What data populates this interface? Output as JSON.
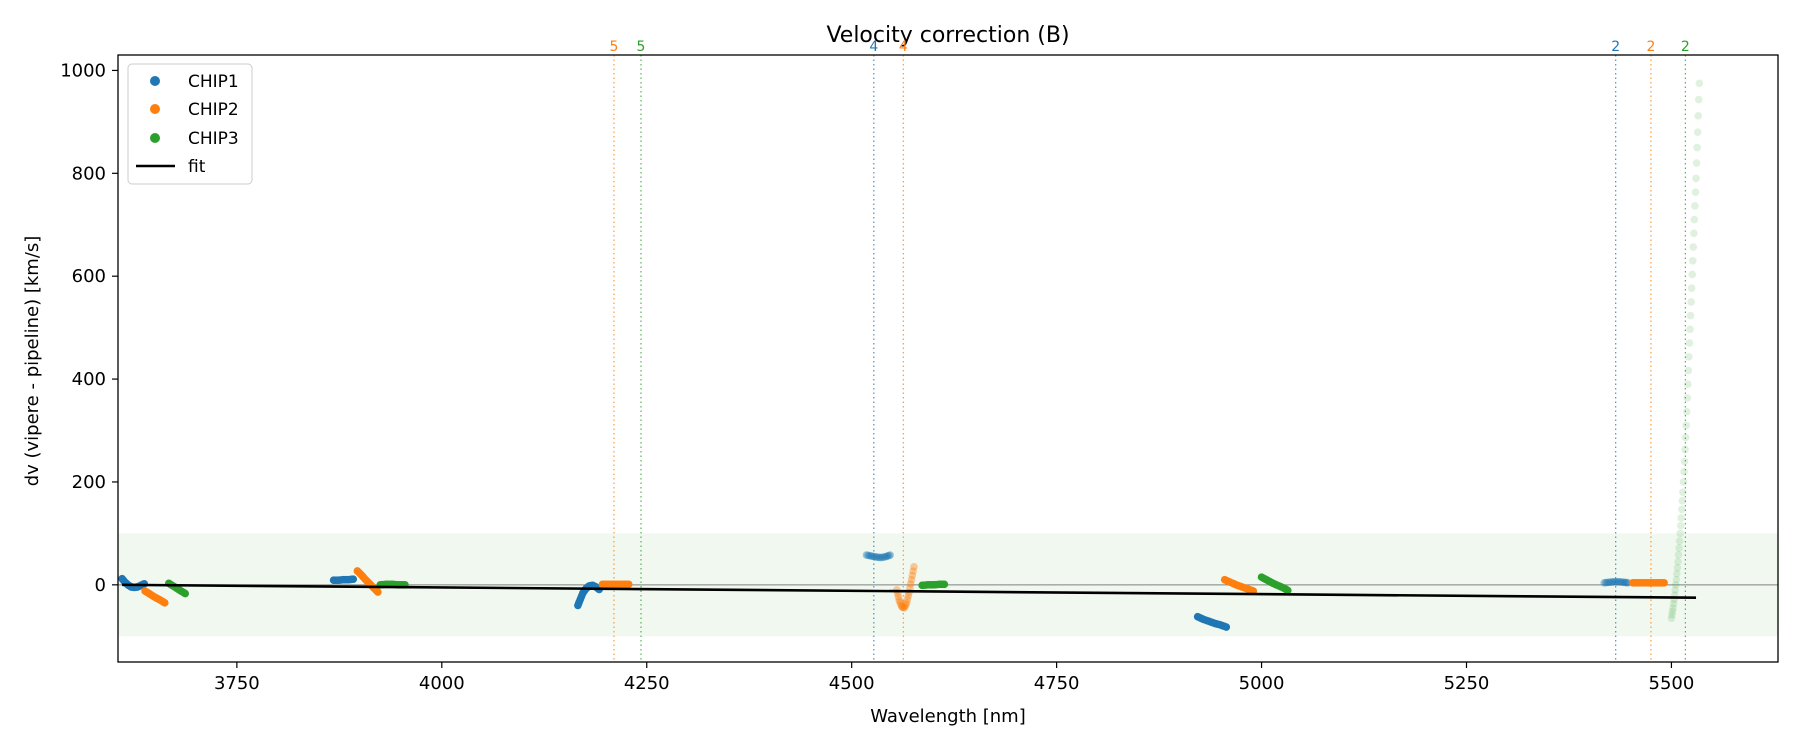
{
  "chart_data": {
    "type": "scatter",
    "title": "Velocity correction (B)",
    "xlabel": "Wavelength [nm]",
    "ylabel": "dv (vipere - pipeline) [km/s]",
    "xlim": [
      3605,
      5630
    ],
    "ylim": [
      -150,
      1030
    ],
    "xticks": [
      "3750",
      "4000",
      "4250",
      "4500",
      "4750",
      "5000",
      "5250",
      "5500"
    ],
    "yticks": [
      "0",
      "200",
      "400",
      "600",
      "800",
      "1000"
    ],
    "band": [
      -100,
      100
    ],
    "grid": false,
    "legend_position": "top-left",
    "legend": [
      {
        "label": "CHIP1",
        "kind": "dot",
        "color": "#1f77b4"
      },
      {
        "label": "CHIP2",
        "kind": "dot",
        "color": "#ff7f0e"
      },
      {
        "label": "CHIP3",
        "kind": "dot",
        "color": "#2ca02c"
      },
      {
        "label": "fit",
        "kind": "line",
        "color": "#000000"
      }
    ],
    "fit": {
      "x": [
        3610,
        5530
      ],
      "y": [
        0,
        -25
      ]
    },
    "vlines": [
      {
        "x": 4210,
        "label": "5",
        "color": "#ff7f0e"
      },
      {
        "x": 4243,
        "label": "5",
        "color": "#2ca02c"
      },
      {
        "x": 4527,
        "label": "4",
        "color": "#1f77b4"
      },
      {
        "x": 4563,
        "label": "4",
        "color": "#ff7f0e"
      },
      {
        "x": 5432,
        "label": "2",
        "color": "#1f77b4"
      },
      {
        "x": 5475,
        "label": "2",
        "color": "#ff7f0e"
      },
      {
        "x": 5517,
        "label": "2",
        "color": "#2ca02c"
      }
    ],
    "series": [
      {
        "chip": "CHIP1",
        "color": "#1f77b4",
        "alpha": 1.0,
        "x": [
          3610,
          3613,
          3617,
          3621,
          3625,
          3629,
          3633,
          3637
        ],
        "y": [
          12,
          6,
          0,
          -4,
          -5,
          -4,
          -1,
          2
        ]
      },
      {
        "chip": "CHIP2",
        "color": "#ff7f0e",
        "alpha": 1.0,
        "x": [
          3638,
          3644,
          3650,
          3656,
          3662
        ],
        "y": [
          -12,
          -18,
          -24,
          -29,
          -35
        ]
      },
      {
        "chip": "CHIP3",
        "color": "#2ca02c",
        "alpha": 1.0,
        "x": [
          3667,
          3672,
          3677,
          3682,
          3687
        ],
        "y": [
          3,
          -2,
          -7,
          -12,
          -17
        ]
      },
      {
        "chip": "CHIP1",
        "color": "#1f77b4",
        "alpha": 1.0,
        "x": [
          3868,
          3874,
          3880,
          3886,
          3892
        ],
        "y": [
          9,
          9,
          10,
          10,
          11
        ]
      },
      {
        "chip": "CHIP2",
        "color": "#ff7f0e",
        "alpha": 1.0,
        "x": [
          3897,
          3902,
          3907,
          3912,
          3917,
          3922
        ],
        "y": [
          27,
          19,
          10,
          2,
          -6,
          -14
        ]
      },
      {
        "chip": "CHIP3",
        "color": "#2ca02c",
        "alpha": 1.0,
        "x": [
          3925,
          3932,
          3940,
          3948,
          3955
        ],
        "y": [
          0,
          1,
          1,
          0,
          0
        ]
      },
      {
        "chip": "CHIP1",
        "color": "#1f77b4",
        "alpha": 1.0,
        "x": [
          4166,
          4169,
          4172,
          4176,
          4180,
          4184,
          4188,
          4192
        ],
        "y": [
          -40,
          -28,
          -16,
          -7,
          -2,
          -1,
          -4,
          -9
        ]
      },
      {
        "chip": "CHIP2",
        "color": "#ff7f0e",
        "alpha": 1.0,
        "x": [
          4196,
          4204,
          4212,
          4220,
          4228
        ],
        "y": [
          1,
          1,
          1,
          1,
          1
        ]
      },
      {
        "chip": "CHIP1",
        "color": "#1f77b4",
        "alpha": 0.4,
        "x": [
          4518,
          4524,
          4530,
          4536,
          4542,
          4547
        ],
        "y": [
          58,
          56,
          54,
          53,
          55,
          58
        ]
      },
      {
        "chip": "CHIP2",
        "color": "#ff7f0e",
        "alpha": 0.4,
        "x": [
          4555,
          4558,
          4561,
          4564,
          4567,
          4570,
          4573,
          4576
        ],
        "y": [
          -10,
          -30,
          -42,
          -45,
          -35,
          -15,
          10,
          35
        ]
      },
      {
        "chip": "CHIP3",
        "color": "#2ca02c",
        "alpha": 1.0,
        "x": [
          4586,
          4593,
          4600,
          4607,
          4613
        ],
        "y": [
          -1,
          0,
          0,
          1,
          1
        ]
      },
      {
        "chip": "CHIP1",
        "color": "#1f77b4",
        "alpha": 1.0,
        "x": [
          4922,
          4929,
          4936,
          4943,
          4950,
          4957
        ],
        "y": [
          -62,
          -67,
          -71,
          -75,
          -78,
          -82
        ]
      },
      {
        "chip": "CHIP2",
        "color": "#ff7f0e",
        "alpha": 1.0,
        "x": [
          4955,
          4962,
          4969,
          4976,
          4983,
          4990
        ],
        "y": [
          10,
          5,
          0,
          -4,
          -8,
          -12
        ]
      },
      {
        "chip": "CHIP3",
        "color": "#2ca02c",
        "alpha": 1.0,
        "x": [
          5000,
          5007,
          5014,
          5021,
          5028,
          5032
        ],
        "y": [
          15,
          9,
          3,
          -2,
          -7,
          -11
        ]
      },
      {
        "chip": "CHIP1",
        "color": "#1f77b4",
        "alpha": 0.4,
        "x": [
          5418,
          5424,
          5430,
          5436,
          5442,
          5447
        ],
        "y": [
          4,
          5,
          6,
          6,
          5,
          4
        ]
      },
      {
        "chip": "CHIP2",
        "color": "#ff7f0e",
        "alpha": 1.0,
        "x": [
          5453,
          5461,
          5469,
          5477,
          5485,
          5491
        ],
        "y": [
          4,
          4,
          4,
          4,
          4,
          4
        ]
      },
      {
        "chip": "CHIP3",
        "color": "#2ca02c",
        "alpha": 0.15,
        "x": [
          5500,
          5502,
          5504,
          5506,
          5508,
          5510,
          5512,
          5514,
          5516,
          5518,
          5520,
          5522,
          5524,
          5526,
          5528,
          5530,
          5532,
          5534
        ],
        "y": [
          -65,
          -45,
          -20,
          10,
          45,
          85,
          130,
          180,
          240,
          310,
          390,
          470,
          550,
          630,
          710,
          790,
          880,
          975
        ]
      }
    ]
  }
}
